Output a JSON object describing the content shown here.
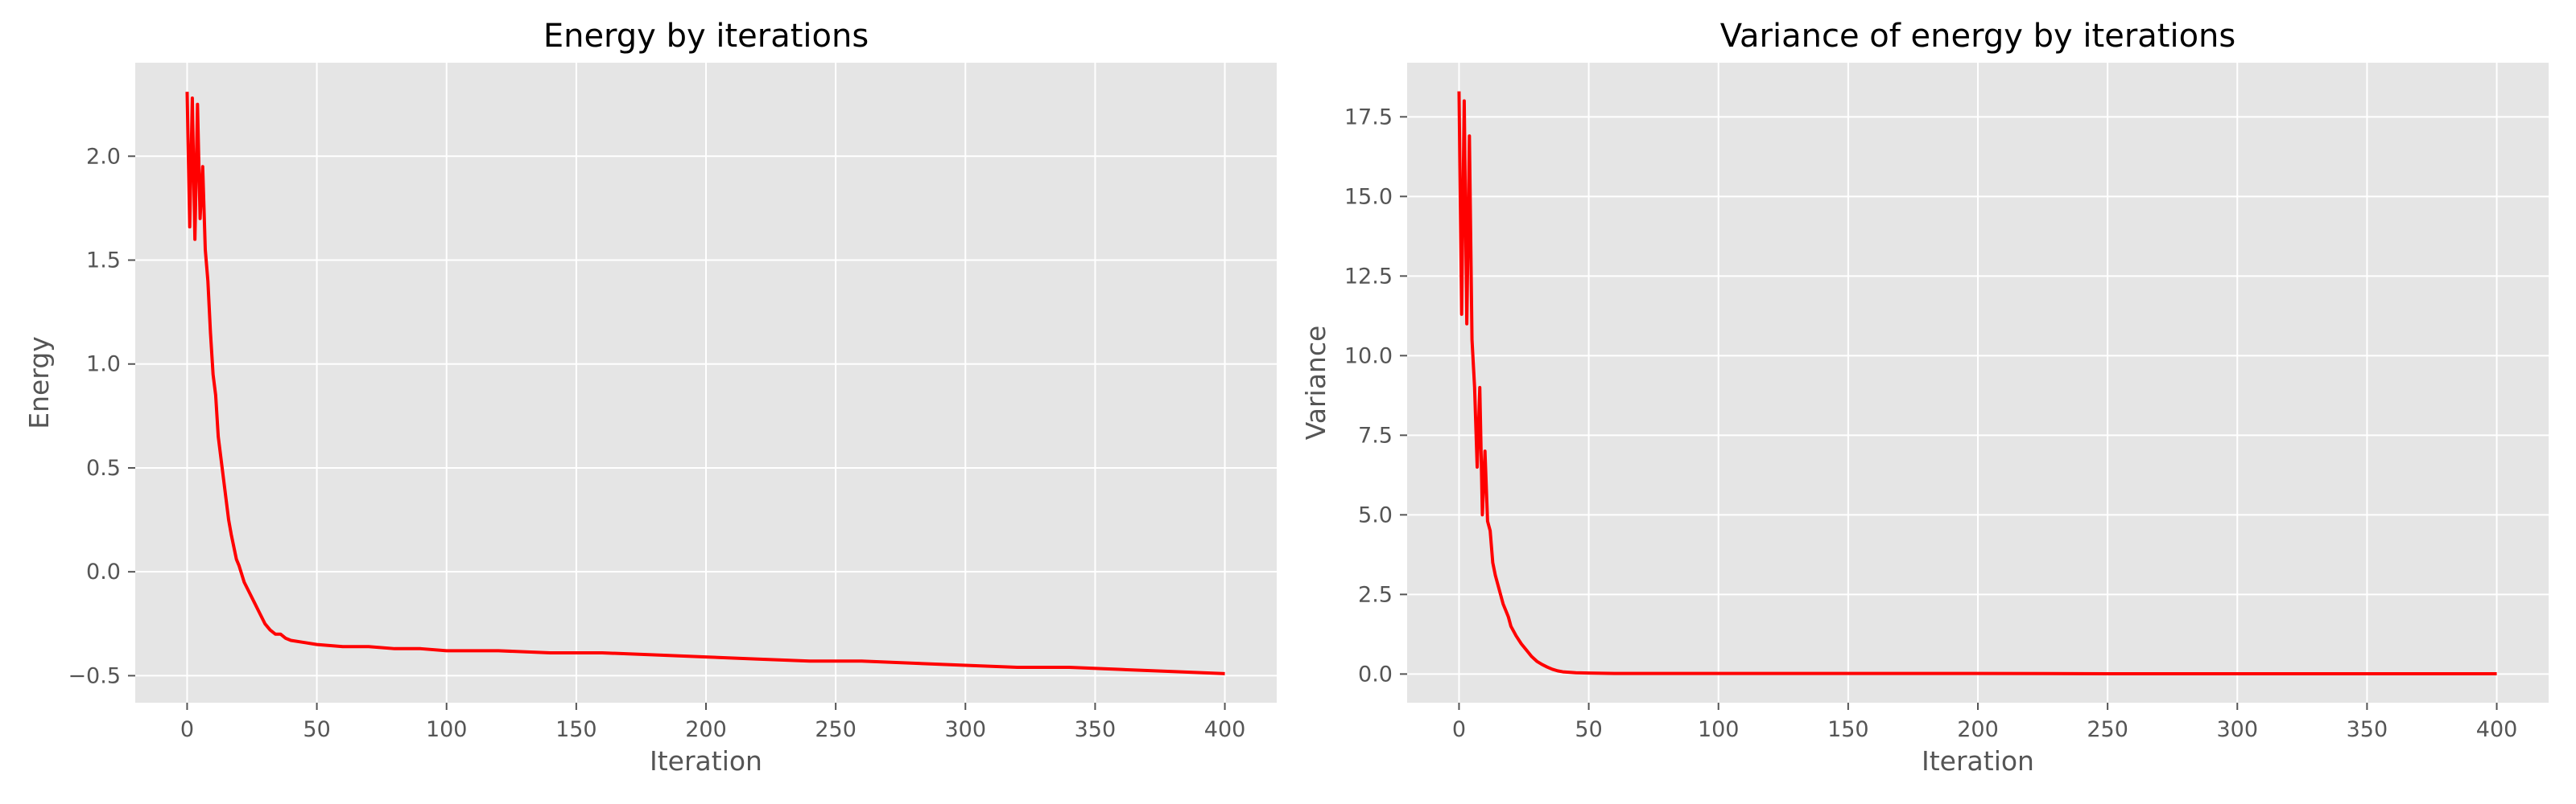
{
  "colors": {
    "panel_background": "#e5e5e5",
    "grid": "#ffffff",
    "line": "#ff0000",
    "text": "#555555",
    "title": "#000000"
  },
  "chart_data": [
    {
      "type": "line",
      "title": "Energy by iterations",
      "xlabel": "Iteration",
      "ylabel": "Energy",
      "xlim": [
        -20,
        420
      ],
      "ylim": [
        -0.63,
        2.45
      ],
      "x_ticks": [
        0,
        50,
        100,
        150,
        200,
        250,
        300,
        350,
        400
      ],
      "x_tick_labels": [
        "0",
        "50",
        "100",
        "150",
        "200",
        "250",
        "300",
        "350",
        "400"
      ],
      "y_ticks": [
        -0.5,
        0.0,
        0.5,
        1.0,
        1.5,
        2.0
      ],
      "y_tick_labels": [
        "−0.5",
        "0.0",
        "0.5",
        "1.0",
        "1.5",
        "2.0"
      ],
      "grid": true,
      "series": [
        {
          "color": "#ff0000",
          "x": [
            0,
            1,
            2,
            3,
            4,
            5,
            6,
            7,
            8,
            9,
            10,
            11,
            12,
            13,
            14,
            15,
            16,
            17,
            18,
            19,
            20,
            22,
            24,
            26,
            28,
            30,
            32,
            34,
            36,
            38,
            40,
            45,
            50,
            60,
            70,
            80,
            90,
            100,
            120,
            140,
            160,
            180,
            200,
            220,
            240,
            260,
            280,
            300,
            320,
            340,
            360,
            380,
            400
          ],
          "y": [
            2.31,
            1.66,
            2.28,
            1.6,
            2.25,
            1.7,
            1.95,
            1.55,
            1.4,
            1.15,
            0.95,
            0.85,
            0.65,
            0.55,
            0.45,
            0.35,
            0.25,
            0.18,
            0.12,
            0.06,
            0.03,
            -0.05,
            -0.1,
            -0.15,
            -0.2,
            -0.25,
            -0.28,
            -0.3,
            -0.3,
            -0.32,
            -0.33,
            -0.34,
            -0.35,
            -0.36,
            -0.36,
            -0.37,
            -0.37,
            -0.38,
            -0.38,
            -0.39,
            -0.39,
            -0.4,
            -0.41,
            -0.42,
            -0.43,
            -0.43,
            -0.44,
            -0.45,
            -0.46,
            -0.46,
            -0.47,
            -0.48,
            -0.49
          ]
        }
      ]
    },
    {
      "type": "line",
      "title": "Variance of energy by iterations",
      "xlabel": "Iteration",
      "ylabel": "Variance",
      "xlim": [
        -20,
        420
      ],
      "ylim": [
        -0.9,
        19.2
      ],
      "x_ticks": [
        0,
        50,
        100,
        150,
        200,
        250,
        300,
        350,
        400
      ],
      "x_tick_labels": [
        "0",
        "50",
        "100",
        "150",
        "200",
        "250",
        "300",
        "350",
        "400"
      ],
      "y_ticks": [
        0.0,
        2.5,
        5.0,
        7.5,
        10.0,
        12.5,
        15.0,
        17.5
      ],
      "y_tick_labels": [
        "0.0",
        "2.5",
        "5.0",
        "7.5",
        "10.0",
        "12.5",
        "15.0",
        "17.5"
      ],
      "grid": true,
      "series": [
        {
          "color": "#ff0000",
          "x": [
            0,
            1,
            2,
            3,
            4,
            5,
            6,
            7,
            8,
            9,
            10,
            11,
            12,
            13,
            14,
            15,
            16,
            17,
            18,
            19,
            20,
            22,
            24,
            26,
            28,
            30,
            32,
            34,
            36,
            38,
            40,
            45,
            50,
            60,
            80,
            100,
            150,
            200,
            250,
            300,
            350,
            400
          ],
          "y": [
            18.3,
            11.3,
            18.0,
            11.0,
            16.9,
            10.5,
            9.0,
            6.5,
            9.0,
            5.0,
            7.0,
            4.8,
            4.5,
            3.5,
            3.1,
            2.8,
            2.5,
            2.2,
            2.0,
            1.8,
            1.5,
            1.2,
            0.95,
            0.75,
            0.55,
            0.4,
            0.3,
            0.22,
            0.15,
            0.1,
            0.07,
            0.04,
            0.03,
            0.02,
            0.02,
            0.02,
            0.02,
            0.02,
            0.01,
            0.01,
            0.01,
            0.01
          ]
        }
      ]
    }
  ]
}
